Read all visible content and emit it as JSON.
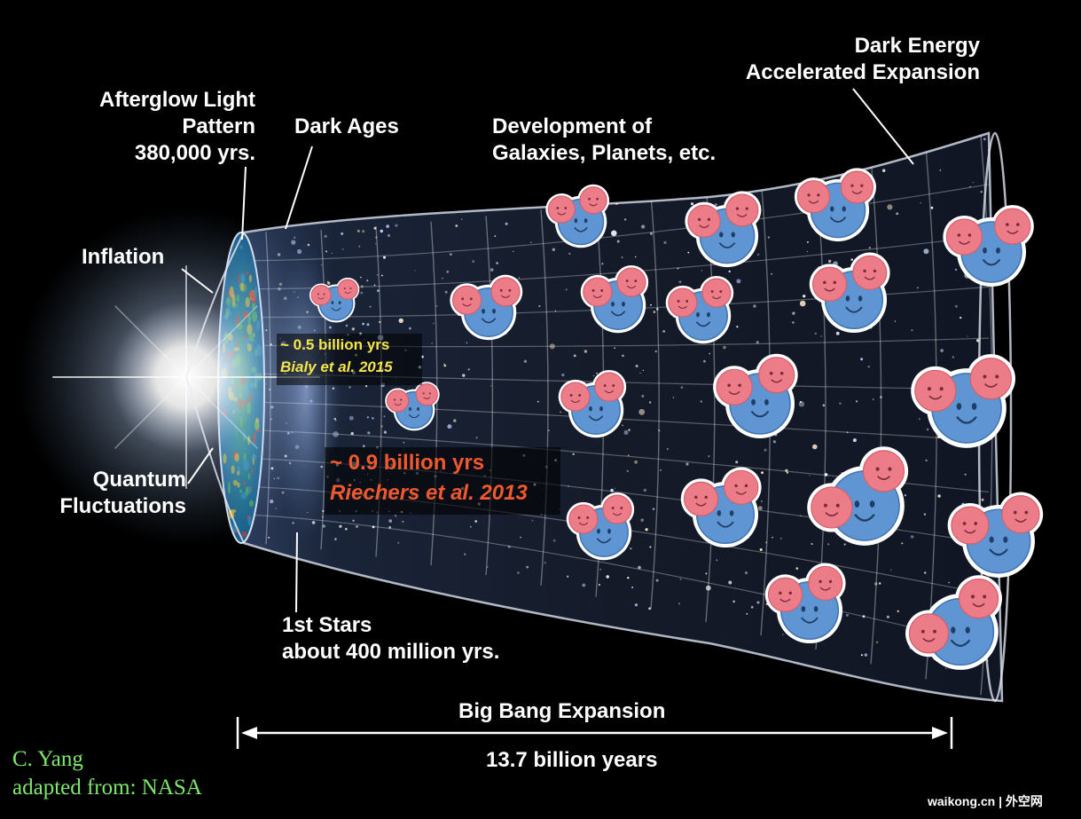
{
  "labels": {
    "afterglow": [
      "Afterglow Light",
      "Pattern",
      "380,000 yrs."
    ],
    "dark_ages": "Dark Ages",
    "development": [
      "Development of",
      "Galaxies, Planets, etc."
    ],
    "dark_energy": [
      "Dark Energy",
      "Accelerated Expansion"
    ],
    "inflation": "Inflation",
    "quantum": [
      "Quantum",
      "Fluctuations"
    ],
    "first_stars": [
      "1st Stars",
      "about 400 million yrs."
    ],
    "expansion": "Big Bang Expansion",
    "duration": "13.7 billion years"
  },
  "annotations": {
    "bialy": {
      "time": "~ 0.5 billion yrs",
      "ref": "Bialy et al. 2015",
      "color": "#f5e64a"
    },
    "riechers": {
      "time": "~ 0.9 billion yrs",
      "ref": "Riechers et al. 2013",
      "color": "#f0582e"
    }
  },
  "credits": [
    "C. Yang",
    "adapted from: NASA"
  ],
  "watermark": "waikong.cn | 外空网",
  "colors": {
    "oxygen": "#5e95d2",
    "hydrogen": "#ec7d88",
    "cmb": "#2a9c78",
    "credit": "#7ee86a"
  }
}
